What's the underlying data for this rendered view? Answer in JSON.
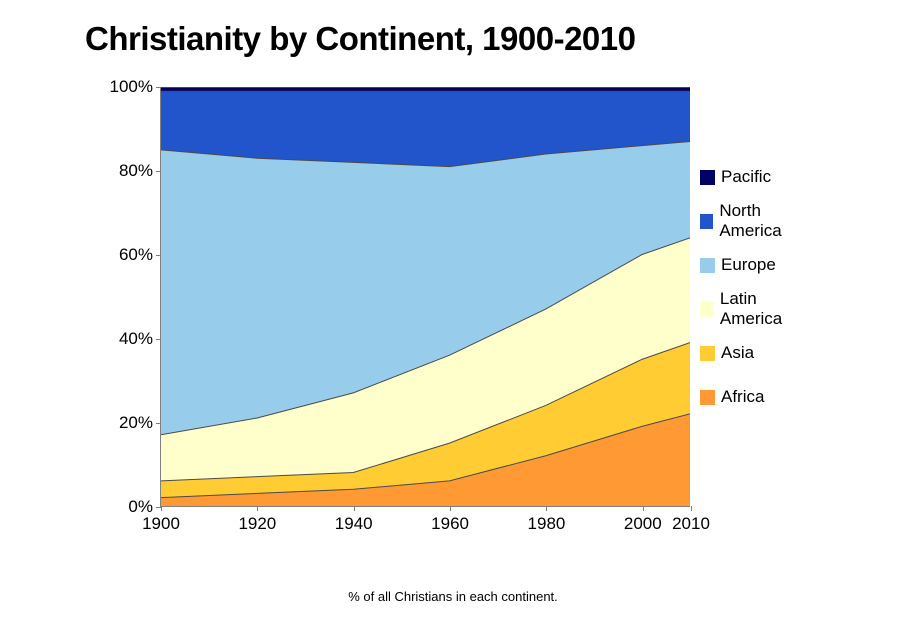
{
  "title": "Christianity by Continent, 1900-2010",
  "caption": "% of all Christians in each continent.",
  "chart": {
    "type": "stacked-area",
    "years": [
      1900,
      1920,
      1940,
      1960,
      1980,
      2000,
      2010
    ],
    "xlim": [
      1900,
      2010
    ],
    "ylim": [
      0,
      100
    ],
    "ytick_step_major": 20,
    "ytick_labels": [
      "0%",
      "20%",
      "40%",
      "60%",
      "80%",
      "100%"
    ],
    "xtick_labels": [
      "1900",
      "1920",
      "1940",
      "1960",
      "1980",
      "2000",
      "2010"
    ],
    "background_color": "#ffffff",
    "grid_color": "#808080",
    "axis_color": "#808080",
    "tick_fontsize": 17,
    "title_fontsize": 33,
    "caption_fontsize": 13,
    "boundary_stroke_color": "#4a4a4a",
    "boundary_stroke_width": 1,
    "series": [
      {
        "name": "Africa",
        "color": "#ff9933",
        "values": [
          2,
          3,
          4,
          6,
          12,
          19,
          22
        ]
      },
      {
        "name": "Asia",
        "color": "#ffcc33",
        "values": [
          4,
          4,
          4,
          9,
          12,
          16,
          17
        ]
      },
      {
        "name": "Latin America",
        "color": "#ffffcc",
        "values": [
          11,
          14,
          19,
          21,
          23,
          25,
          25
        ]
      },
      {
        "name": "Europe",
        "color": "#97ccea",
        "values": [
          68,
          62,
          55,
          45,
          37,
          26,
          23
        ]
      },
      {
        "name": "North America",
        "color": "#2255cc",
        "values": [
          14,
          16,
          17,
          18,
          15,
          13,
          12
        ]
      },
      {
        "name": "Pacific",
        "color": "#000066",
        "values": [
          1,
          1,
          1,
          1,
          1,
          1,
          1
        ]
      }
    ],
    "legend": {
      "position": "right",
      "order": [
        "Pacific",
        "North America",
        "Europe",
        "Latin America",
        "Asia",
        "Africa"
      ],
      "swatch_size": 15,
      "label_fontsize": 17,
      "item_spacing": 44
    }
  }
}
